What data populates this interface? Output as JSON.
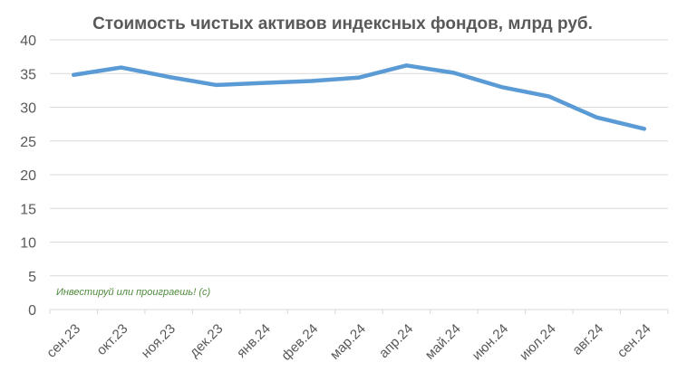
{
  "chart_data": {
    "type": "line",
    "title": "Стоимость чистых активов индексных фондов, млрд руб.",
    "categories": [
      "сен.23",
      "окт.23",
      "ноя.23",
      "дек.23",
      "янв.24",
      "фев.24",
      "мар.24",
      "апр.24",
      "май.24",
      "июн.24",
      "июл.24",
      "авг.24",
      "сен.24"
    ],
    "series": [
      {
        "values": [
          34.8,
          35.9,
          34.5,
          33.3,
          33.6,
          33.9,
          34.4,
          36.2,
          35.1,
          33.0,
          31.6,
          28.5,
          26.8
        ],
        "color": "#5b9bd5"
      }
    ],
    "ylim": [
      0,
      40
    ],
    "yticks": [
      0,
      5,
      10,
      15,
      20,
      25,
      30,
      35,
      40
    ],
    "grid": true,
    "legend": "none",
    "annotation": "Инвестируй или проиграешь! (с)",
    "annotation_color": "#4e8a3c"
  }
}
